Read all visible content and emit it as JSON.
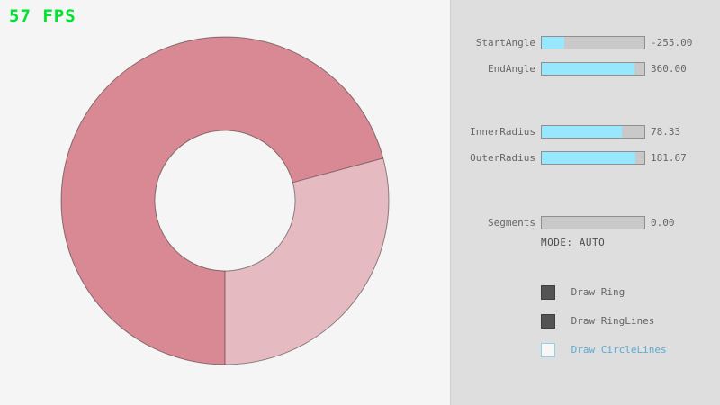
{
  "fps_label": "57 FPS",
  "colors": {
    "fps_green": "#00E430",
    "ring_dark": "#D98994",
    "ring_light": "#E6BAC1",
    "ring_line": "#000000",
    "slider_fill": "#97E8FF",
    "accent_blue": "#58ACD5"
  },
  "panel": {
    "sliders": [
      {
        "label": "StartAngle",
        "value": "-255.00",
        "fill_pct": 22
      },
      {
        "label": "EndAngle",
        "value": "360.00",
        "fill_pct": 90
      },
      {
        "label": "InnerRadius",
        "value": "78.33",
        "fill_pct": 78
      },
      {
        "label": "OuterRadius",
        "value": "181.67",
        "fill_pct": 91
      },
      {
        "label": "Segments",
        "value": "0.00",
        "fill_pct": 0
      }
    ],
    "mode_text": "MODE: AUTO",
    "checkboxes": [
      {
        "label": "Draw Ring",
        "checked": true
      },
      {
        "label": "Draw RingLines",
        "checked": true
      },
      {
        "label": "Draw CircleLines",
        "checked": false
      }
    ]
  }
}
